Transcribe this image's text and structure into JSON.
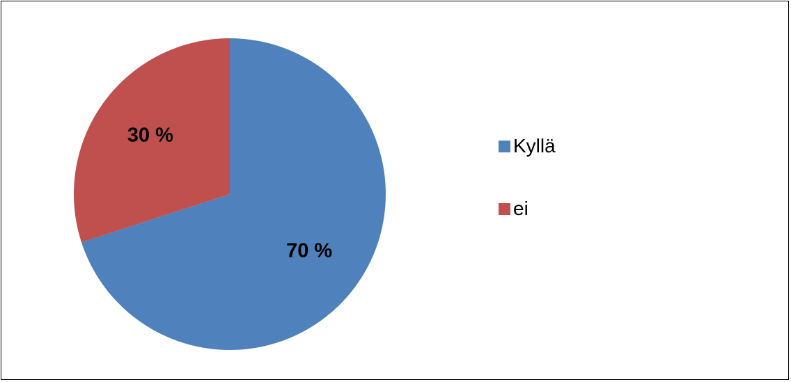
{
  "chart_data": {
    "type": "pie",
    "title": "",
    "categories": [
      "Kyllä",
      "ei"
    ],
    "values": [
      70,
      30
    ],
    "data_labels": [
      "70 %",
      "30 %"
    ],
    "colors": [
      "#4F81BD",
      "#C0504D"
    ],
    "start_angle": "12 o'clock",
    "direction": "clockwise",
    "legend_placement": "right"
  },
  "legend": {
    "items": [
      {
        "label": "Kyllä",
        "color": "#4F81BD"
      },
      {
        "label": "ei",
        "color": "#C0504D"
      }
    ]
  }
}
